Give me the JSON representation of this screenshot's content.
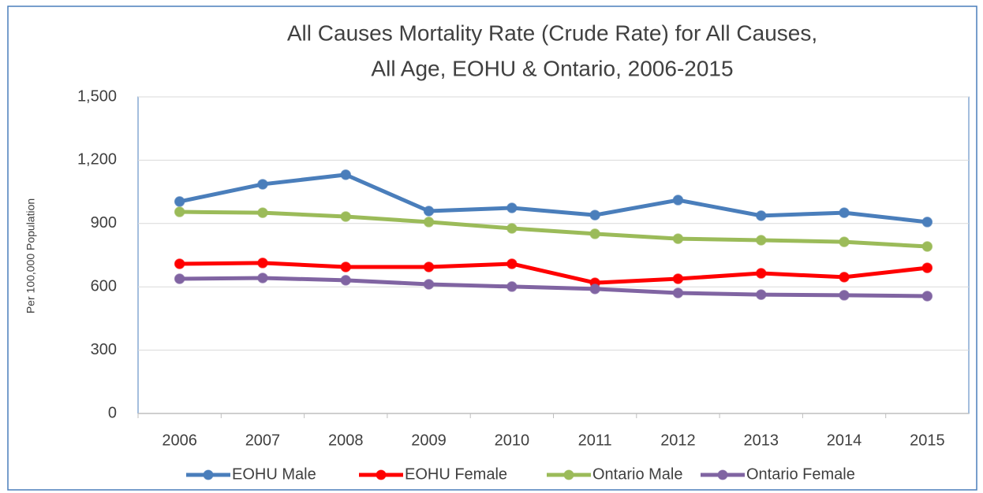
{
  "chart_data": {
    "type": "line",
    "title": [
      "All Causes Mortality Rate (Crude Rate) for All Causes,",
      "All Age, EOHU & Ontario, 2006-2015"
    ],
    "y_label": "Per 100,000 Population",
    "categories": [
      "2006",
      "2007",
      "2008",
      "2009",
      "2010",
      "2011",
      "2012",
      "2013",
      "2014",
      "2015"
    ],
    "series": [
      {
        "name": "EOHU Male",
        "color": "#4a7ebb",
        "values": [
          1004,
          1086,
          1131,
          959,
          974,
          940,
          1011,
          937,
          951,
          907
        ]
      },
      {
        "name": "EOHU Female",
        "color": "#ff0000",
        "values": [
          709,
          713,
          694,
          694,
          709,
          619,
          638,
          664,
          646,
          690
        ]
      },
      {
        "name": "Ontario Male",
        "color": "#9bbb59",
        "values": [
          955,
          951,
          933,
          907,
          877,
          851,
          828,
          821,
          813,
          791
        ]
      },
      {
        "name": "Ontario Female",
        "color": "#8064a2",
        "values": [
          638,
          642,
          631,
          612,
          601,
          590,
          571,
          563,
          560,
          556
        ]
      }
    ],
    "ylim": [
      0,
      1500
    ],
    "yticks": [
      0,
      300,
      600,
      900,
      {
        "value": 1200,
        "label": "1,200"
      },
      {
        "value": 1500,
        "label": "1,500"
      }
    ],
    "grid": true,
    "legend": "bottom"
  }
}
